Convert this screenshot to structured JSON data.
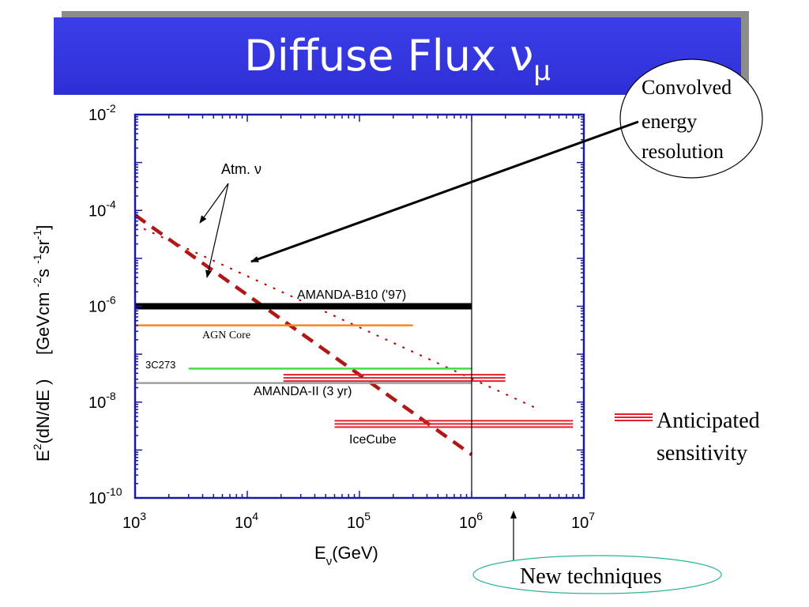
{
  "slide": {
    "title_main": "Diffuse Flux ν",
    "title_sub": "μ"
  },
  "chart_data": {
    "type": "line",
    "xscale": "log",
    "yscale": "log",
    "xlim": [
      1000,
      10000000
    ],
    "ylim": [
      1e-10,
      0.01
    ],
    "x_ticks": [
      {
        "base": "10",
        "exp": "3",
        "value": 1000
      },
      {
        "base": "10",
        "exp": "4",
        "value": 10000
      },
      {
        "base": "10",
        "exp": "5",
        "value": 100000
      },
      {
        "base": "10",
        "exp": "6",
        "value": 1000000
      },
      {
        "base": "10",
        "exp": "7",
        "value": 10000000
      }
    ],
    "y_ticks": [
      {
        "base": "10",
        "exp": "-2",
        "value": 0.01
      },
      {
        "base": "10",
        "exp": "-4",
        "value": 0.0001
      },
      {
        "base": "10",
        "exp": "-6",
        "value": 1e-06
      },
      {
        "base": "10",
        "exp": "-8",
        "value": 1e-08
      },
      {
        "base": "10",
        "exp": "-10",
        "value": 1e-10
      }
    ],
    "xlabel": "E",
    "xlabel_sub": "ν",
    "xlabel_rest": "(GeV)",
    "ylabel_parts": [
      "E",
      "2",
      "(dN/dE )     [GeVcm ",
      "-2",
      "s ",
      "-1",
      "sr",
      "-1",
      "]"
    ],
    "series": [
      {
        "name": "Atm. ν",
        "style": "dotted",
        "color": "#c00000",
        "x": [
          1000,
          4000000
        ],
        "y": [
          5e-05,
          7e-09
        ]
      },
      {
        "name": "Atm. ν",
        "style": "dashed",
        "color": "#b01818",
        "x": [
          1000,
          1000000
        ],
        "y": [
          8e-05,
          8e-10
        ]
      },
      {
        "name": "AMANDA-B10 ('97)",
        "style": "thick",
        "color": "#000000",
        "x": [
          1000,
          1000000
        ],
        "y": [
          1e-06,
          1e-06
        ]
      },
      {
        "name": "AGN Core",
        "style": "solid",
        "color": "#f5862a",
        "x": [
          1000,
          300000
        ],
        "y": [
          4e-07,
          4e-07
        ]
      },
      {
        "name": "3C273",
        "style": "solid",
        "color": "#44dd44",
        "x": [
          3000,
          1000000
        ],
        "y": [
          5e-08,
          5e-08
        ]
      },
      {
        "name": "AMANDA-II (3 yr)",
        "style": "solid",
        "color": "#a0a0a0",
        "x": [
          1000,
          1000000
        ],
        "y": [
          2.5e-08,
          2.5e-08
        ]
      },
      {
        "name": "AMANDA-II (3 yr)",
        "style": "anticipated",
        "color": "#e0202a",
        "x": [
          21000,
          2000000
        ],
        "y": [
          3.2e-08,
          3.2e-08
        ]
      },
      {
        "name": "IceCube",
        "style": "anticipated",
        "color": "#e0202a",
        "x": [
          60000,
          8000000
        ],
        "y": [
          3.5e-09,
          3.5e-09
        ]
      }
    ],
    "vline_x": 1000000,
    "labels": {
      "atm": "Atm.  ν",
      "amanda_b10": "AMANDA-B10 ('97)",
      "agn_core": "AGN Core",
      "c3c273": "3C273",
      "amanda_ii": "AMANDA-II (3 yr)",
      "icecube": "IceCube"
    }
  },
  "annotations": {
    "convolved": [
      "Convolved",
      "energy",
      "resolution"
    ],
    "anticipated": [
      "Anticipated",
      "sensitivity"
    ],
    "new_techniques": "New techniques"
  }
}
